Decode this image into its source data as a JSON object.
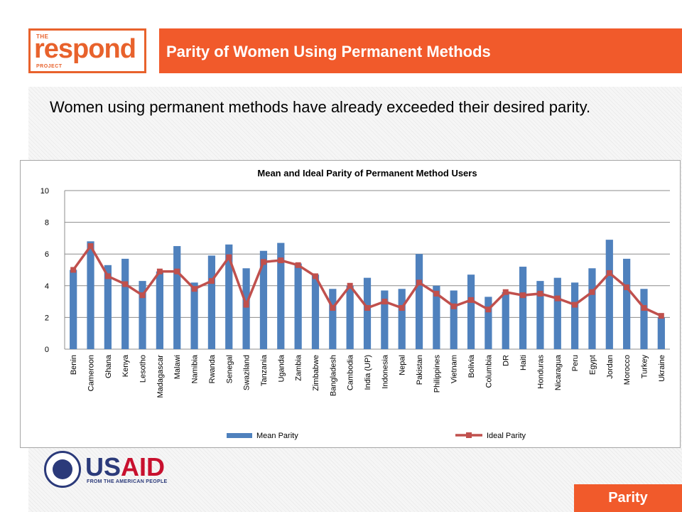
{
  "logo": {
    "top": "THE",
    "main": "respond",
    "bottom": "PROJECT"
  },
  "header": {
    "title": "Parity of Women Using Permanent Methods"
  },
  "subtitle": "Women using permanent methods have already exceeded their desired parity.",
  "usaid": {
    "word_a": "US",
    "word_b": "AID",
    "tagline": "FROM THE AMERICAN PEOPLE"
  },
  "footer_tag": "Parity",
  "colors": {
    "accent": "#f15a2b",
    "bar": "#4f81bd",
    "line": "#c0504d",
    "usaid_blue": "#2b3a7a",
    "usaid_red": "#c8102e"
  },
  "chart_data": {
    "type": "bar",
    "title": "Mean and Ideal Parity of Permanent Method Users",
    "xlabel": "",
    "ylabel": "",
    "ylim": [
      0,
      10
    ],
    "yticks": [
      0,
      2,
      4,
      6,
      8,
      10
    ],
    "grid": true,
    "legend": "bottom",
    "categories": [
      "Benin",
      "Cameroon",
      "Ghana",
      "Kenya",
      "Lesotho",
      "Madagascar",
      "Malawi",
      "Namibia",
      "Rwanda",
      "Senegal",
      "Swaziland",
      "Tanzania",
      "Uganda",
      "Zambia",
      "Zimbabwe",
      "Bangladesh",
      "Cambodia",
      "India (UP)",
      "Indonesia",
      "Nepal",
      "Pakistan",
      "Philippines",
      "Vietnam",
      "Bolivia",
      "Columbia",
      "DR",
      "Haiti",
      "Honduras",
      "Nicaragua",
      "Peru",
      "Egypt",
      "Jordan",
      "Morocco",
      "Turkey",
      "Ukraine"
    ],
    "series": [
      {
        "name": "Mean Parity",
        "type": "bar",
        "values": [
          5.0,
          6.8,
          5.3,
          5.7,
          4.3,
          4.9,
          6.5,
          4.2,
          5.9,
          6.6,
          5.1,
          6.2,
          6.7,
          5.4,
          4.7,
          3.8,
          4.0,
          4.5,
          3.7,
          3.8,
          6.0,
          4.0,
          3.7,
          4.7,
          3.3,
          3.6,
          5.2,
          4.3,
          4.5,
          4.2,
          5.1,
          6.9,
          5.7,
          3.8,
          2.0
        ]
      },
      {
        "name": "Ideal Parity",
        "type": "line",
        "values": [
          5.0,
          6.5,
          4.6,
          4.1,
          3.4,
          4.9,
          4.9,
          3.8,
          4.3,
          5.8,
          2.8,
          5.5,
          5.6,
          5.3,
          4.6,
          2.6,
          4.0,
          2.6,
          3.0,
          2.6,
          4.2,
          3.5,
          2.7,
          3.1,
          2.5,
          3.6,
          3.4,
          3.5,
          3.2,
          2.8,
          3.6,
          4.8,
          3.9,
          2.6,
          2.1
        ]
      }
    ]
  }
}
